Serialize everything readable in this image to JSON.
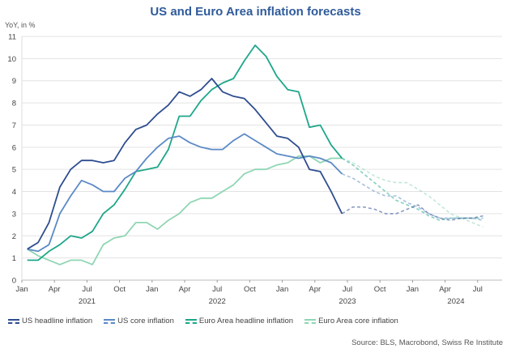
{
  "chart_data": {
    "type": "line",
    "title": "US and Euro Area inflation forecasts",
    "ylabel": "YoY, in %",
    "xlabel": "",
    "ylim": [
      0,
      11
    ],
    "yticks": [
      0,
      1,
      2,
      3,
      4,
      5,
      6,
      7,
      8,
      9,
      10,
      11
    ],
    "xrange_months": [
      "2021-01",
      "2024-09"
    ],
    "xticks": [
      {
        "label": "Jan",
        "m": 0
      },
      {
        "label": "Apr",
        "m": 3
      },
      {
        "label": "Jul",
        "m": 6
      },
      {
        "label": "Oct",
        "m": 9
      },
      {
        "label": "Jan",
        "m": 12
      },
      {
        "label": "Apr",
        "m": 15
      },
      {
        "label": "Jul",
        "m": 18
      },
      {
        "label": "Oct",
        "m": 21
      },
      {
        "label": "Jan",
        "m": 24
      },
      {
        "label": "Apr",
        "m": 27
      },
      {
        "label": "Jul",
        "m": 30
      },
      {
        "label": "Oct",
        "m": 33
      },
      {
        "label": "Jan",
        "m": 36
      },
      {
        "label": "Apr",
        "m": 39
      },
      {
        "label": "Jul",
        "m": 42
      }
    ],
    "year_labels": [
      {
        "label": "2021",
        "m": 6
      },
      {
        "label": "2022",
        "m": 18
      },
      {
        "label": "2023",
        "m": 30
      },
      {
        "label": "2024",
        "m": 40
      }
    ],
    "grid": true,
    "legend_position": "bottom-left",
    "actual_start": "2021-01",
    "actual_end": "2023-06",
    "forecast_end": "2024-07",
    "series": [
      {
        "name": "US headline inflation",
        "color": "#2e4d8f",
        "actual": [
          1.4,
          1.7,
          2.6,
          4.2,
          5.0,
          5.4,
          5.4,
          5.3,
          5.4,
          6.2,
          6.8,
          7.0,
          7.5,
          7.9,
          8.5,
          8.3,
          8.6,
          9.1,
          8.5,
          8.3,
          8.2,
          7.7,
          7.1,
          6.5,
          6.4,
          6.0,
          5.0,
          4.9,
          4.0,
          3.0
        ],
        "forecast": [
          3.0,
          3.3,
          3.3,
          3.2,
          3.0,
          3.0,
          3.2,
          3.4,
          3.0,
          2.8,
          2.7,
          2.8,
          2.8,
          2.9
        ]
      },
      {
        "name": "US core inflation",
        "color": "#5b8ac6",
        "actual": [
          1.4,
          1.3,
          1.6,
          3.0,
          3.8,
          4.5,
          4.3,
          4.0,
          4.0,
          4.6,
          4.9,
          5.5,
          6.0,
          6.4,
          6.5,
          6.2,
          6.0,
          5.9,
          5.9,
          6.3,
          6.6,
          6.3,
          6.0,
          5.7,
          5.6,
          5.5,
          5.6,
          5.5,
          5.3,
          4.8
        ],
        "forecast": [
          4.8,
          4.6,
          4.3,
          4.0,
          3.8,
          3.8,
          3.5,
          3.3,
          3.0,
          2.8,
          2.8,
          2.8,
          2.8,
          2.7
        ]
      },
      {
        "name": "Euro Area headline inflation",
        "color": "#1fa68a",
        "actual": [
          0.9,
          0.9,
          1.3,
          1.6,
          2.0,
          1.9,
          2.2,
          3.0,
          3.4,
          4.1,
          4.9,
          5.0,
          5.1,
          5.9,
          7.4,
          7.4,
          8.1,
          8.6,
          8.9,
          9.1,
          9.9,
          10.6,
          10.1,
          9.2,
          8.6,
          8.5,
          6.9,
          7.0,
          6.1,
          5.5
        ],
        "forecast": [
          5.5,
          5.2,
          4.8,
          4.4,
          4.0,
          3.6,
          3.4,
          3.2,
          2.9,
          2.7,
          2.8,
          2.8,
          2.8,
          2.8
        ]
      },
      {
        "name": "Euro Area core inflation",
        "color": "#8fd6b4",
        "actual": [
          1.4,
          1.1,
          0.9,
          0.7,
          0.9,
          0.9,
          0.7,
          1.6,
          1.9,
          2.0,
          2.6,
          2.6,
          2.3,
          2.7,
          3.0,
          3.5,
          3.7,
          3.7,
          4.0,
          4.3,
          4.8,
          5.0,
          5.0,
          5.2,
          5.3,
          5.6,
          5.6,
          5.3,
          5.5,
          5.5
        ],
        "forecast": [
          5.5,
          5.3,
          5.0,
          4.7,
          4.5,
          4.4,
          4.4,
          4.1,
          3.8,
          3.4,
          3.0,
          2.8,
          2.6,
          2.4
        ]
      }
    ],
    "source": "Source: BLS, Macrobond, Swiss Re Institute"
  }
}
